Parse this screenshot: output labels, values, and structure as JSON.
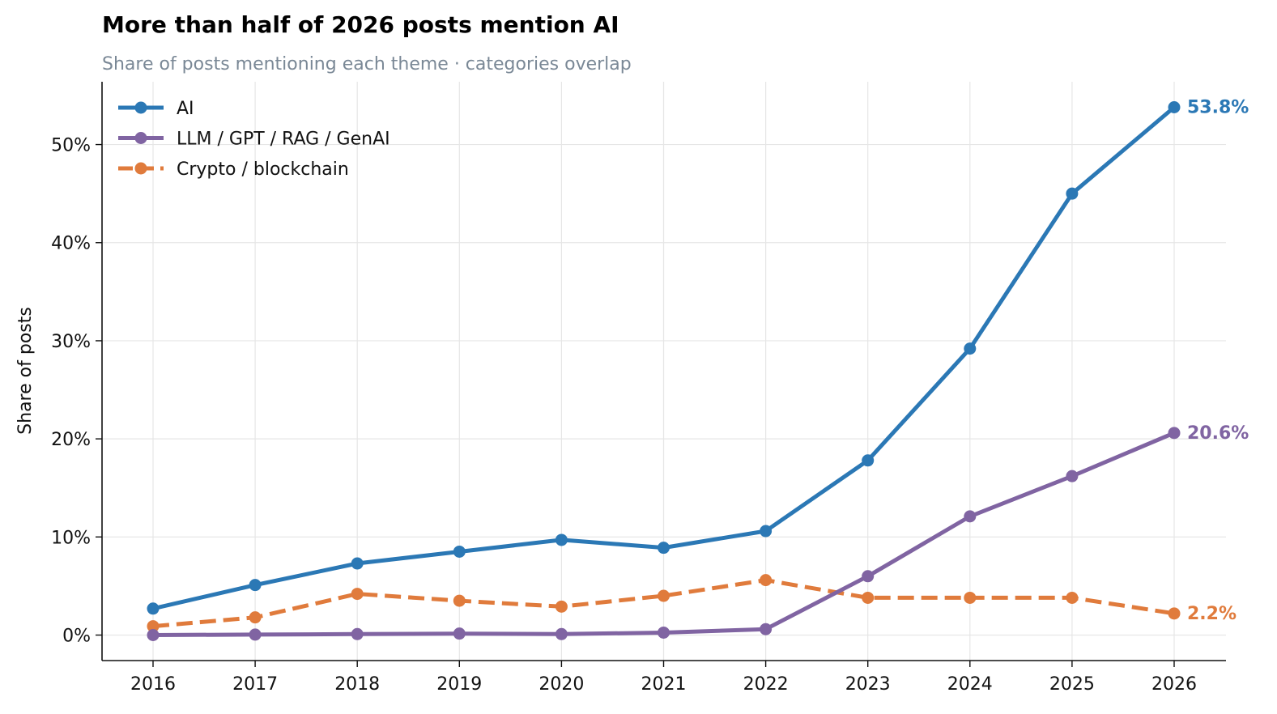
{
  "chart_data": {
    "type": "line",
    "title": "More than half of 2026 posts mention AI",
    "subtitle": "Share of posts mentioning each theme · categories overlap",
    "xlabel": "",
    "ylabel": "Share of posts",
    "x": [
      "2016",
      "2017",
      "2018",
      "2019",
      "2020",
      "2021",
      "2022",
      "2023",
      "2024",
      "2025",
      "2026"
    ],
    "ylim": [
      -2.6,
      56.4
    ],
    "yticks": [
      0,
      10,
      20,
      30,
      40,
      50
    ],
    "ytick_labels": [
      "0%",
      "10%",
      "20%",
      "30%",
      "40%",
      "50%"
    ],
    "grid": true,
    "legend": "top-left",
    "series": [
      {
        "name": "AI",
        "color": "#2b78b5",
        "style": "solid",
        "values": [
          2.7,
          5.1,
          7.3,
          8.5,
          9.7,
          8.9,
          10.6,
          17.8,
          29.2,
          45.0,
          53.8
        ],
        "end_label": "53.8%"
      },
      {
        "name": "LLM / GPT / RAG / GenAI",
        "color": "#8064a2",
        "style": "solid",
        "values": [
          0.0,
          0.05,
          0.1,
          0.15,
          0.1,
          0.25,
          0.6,
          6.0,
          12.1,
          16.2,
          20.6
        ],
        "end_label": "20.6%"
      },
      {
        "name": "Crypto / blockchain",
        "color": "#e07b3c",
        "style": "dashed",
        "values": [
          0.9,
          1.8,
          4.2,
          3.5,
          2.9,
          4.0,
          5.6,
          3.8,
          3.8,
          3.8,
          2.2
        ],
        "end_label": "2.2%"
      }
    ]
  }
}
